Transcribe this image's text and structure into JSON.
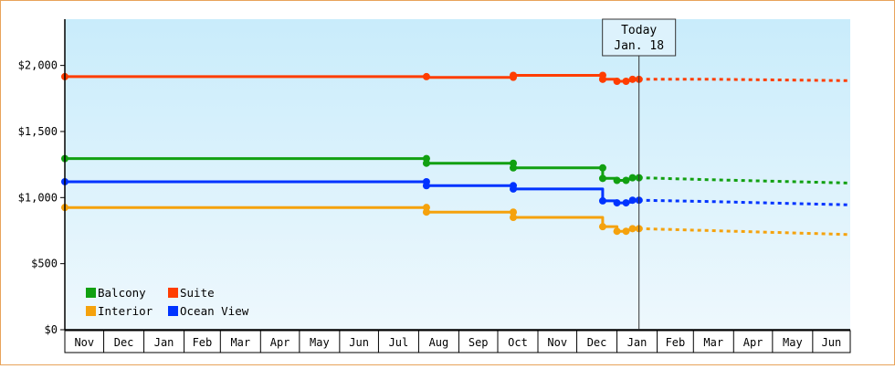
{
  "chart_data": {
    "type": "line",
    "x_axis": {
      "type": "time",
      "month_labels": [
        "Nov",
        "Dec",
        "Jan",
        "Feb",
        "Mar",
        "Apr",
        "May",
        "Jun",
        "Jul",
        "Aug",
        "Sep",
        "Oct",
        "Nov",
        "Dec",
        "Jan",
        "Feb",
        "Mar",
        "Apr",
        "May",
        "Jun"
      ],
      "range": [
        "2016-11-01",
        "2018-06-30"
      ]
    },
    "y_axis": {
      "min": 0,
      "max": 2350,
      "ticks": [
        0,
        500,
        1000,
        1500,
        2000
      ],
      "tick_labels": [
        "$0",
        "$500",
        "$1,000",
        "$1,500",
        "$2,000"
      ],
      "tick_format": "currency"
    },
    "today": {
      "line1": "Today",
      "line2": "Jan. 18",
      "date": "2018-01-18"
    },
    "legend": {
      "placement": "bottom-left",
      "items": [
        "Balcony",
        "Suite",
        "Interior",
        "Ocean View"
      ]
    },
    "series": [
      {
        "name": "Suite",
        "color": "#ff3d00",
        "points": [
          [
            "2016-11-01",
            1915
          ],
          [
            "2017-08-07",
            1915
          ],
          [
            "2017-08-07",
            1910
          ],
          [
            "2017-10-13",
            1910
          ],
          [
            "2017-10-13",
            1925
          ],
          [
            "2017-12-21",
            1925
          ],
          [
            "2017-12-21",
            1895
          ],
          [
            "2018-01-01",
            1895
          ],
          [
            "2018-01-01",
            1880
          ],
          [
            "2018-01-08",
            1880
          ],
          [
            "2018-01-08",
            1885
          ],
          [
            "2018-01-13",
            1885
          ],
          [
            "2018-01-13",
            1895
          ],
          [
            "2018-01-18",
            1895
          ]
        ],
        "forecast": [
          [
            "2018-01-18",
            1895
          ],
          [
            "2018-03-15",
            1895
          ],
          [
            "2018-06-30",
            1885
          ]
        ]
      },
      {
        "name": "Balcony",
        "color": "#11a011",
        "points": [
          [
            "2016-11-01",
            1295
          ],
          [
            "2017-08-07",
            1295
          ],
          [
            "2017-08-07",
            1260
          ],
          [
            "2017-10-13",
            1260
          ],
          [
            "2017-10-13",
            1225
          ],
          [
            "2017-12-21",
            1225
          ],
          [
            "2017-12-21",
            1145
          ],
          [
            "2018-01-01",
            1145
          ],
          [
            "2018-01-01",
            1130
          ],
          [
            "2018-01-08",
            1130
          ],
          [
            "2018-01-08",
            1140
          ],
          [
            "2018-01-13",
            1140
          ],
          [
            "2018-01-13",
            1150
          ],
          [
            "2018-01-18",
            1150
          ]
        ],
        "forecast": [
          [
            "2018-01-18",
            1150
          ],
          [
            "2018-03-15",
            1135
          ],
          [
            "2018-06-30",
            1110
          ]
        ]
      },
      {
        "name": "Ocean View",
        "color": "#0033ff",
        "points": [
          [
            "2016-11-01",
            1120
          ],
          [
            "2017-08-07",
            1120
          ],
          [
            "2017-08-07",
            1090
          ],
          [
            "2017-10-13",
            1090
          ],
          [
            "2017-10-13",
            1065
          ],
          [
            "2017-12-21",
            1065
          ],
          [
            "2017-12-21",
            975
          ],
          [
            "2018-01-01",
            975
          ],
          [
            "2018-01-01",
            960
          ],
          [
            "2018-01-08",
            960
          ],
          [
            "2018-01-08",
            965
          ],
          [
            "2018-01-13",
            965
          ],
          [
            "2018-01-13",
            980
          ],
          [
            "2018-01-18",
            980
          ]
        ],
        "forecast": [
          [
            "2018-01-18",
            980
          ],
          [
            "2018-03-15",
            970
          ],
          [
            "2018-06-30",
            945
          ]
        ]
      },
      {
        "name": "Interior",
        "color": "#f5a20d",
        "points": [
          [
            "2016-11-01",
            925
          ],
          [
            "2017-08-07",
            925
          ],
          [
            "2017-08-07",
            890
          ],
          [
            "2017-10-13",
            890
          ],
          [
            "2017-10-13",
            850
          ],
          [
            "2017-12-21",
            850
          ],
          [
            "2017-12-21",
            780
          ],
          [
            "2018-01-01",
            780
          ],
          [
            "2018-01-01",
            745
          ],
          [
            "2018-01-08",
            745
          ],
          [
            "2018-01-08",
            755
          ],
          [
            "2018-01-13",
            755
          ],
          [
            "2018-01-13",
            765
          ],
          [
            "2018-01-18",
            765
          ]
        ],
        "forecast": [
          [
            "2018-01-18",
            765
          ],
          [
            "2018-03-15",
            750
          ],
          [
            "2018-06-30",
            720
          ]
        ]
      }
    ],
    "markers": [
      {
        "series": "Suite",
        "x": "2016-11-01",
        "y": 1915
      },
      {
        "series": "Suite",
        "x": "2017-08-07",
        "y": 1915
      },
      {
        "series": "Suite",
        "x": "2017-10-13",
        "y": 1910
      },
      {
        "series": "Suite",
        "x": "2017-10-13",
        "y": 1925
      },
      {
        "series": "Suite",
        "x": "2017-12-21",
        "y": 1925
      },
      {
        "series": "Suite",
        "x": "2017-12-21",
        "y": 1895
      },
      {
        "series": "Suite",
        "x": "2018-01-01",
        "y": 1880
      },
      {
        "series": "Suite",
        "x": "2018-01-08",
        "y": 1880
      },
      {
        "series": "Suite",
        "x": "2018-01-13",
        "y": 1895
      },
      {
        "series": "Suite",
        "x": "2018-01-18",
        "y": 1895
      },
      {
        "series": "Balcony",
        "x": "2016-11-01",
        "y": 1295
      },
      {
        "series": "Balcony",
        "x": "2017-08-07",
        "y": 1295
      },
      {
        "series": "Balcony",
        "x": "2017-08-07",
        "y": 1260
      },
      {
        "series": "Balcony",
        "x": "2017-10-13",
        "y": 1260
      },
      {
        "series": "Balcony",
        "x": "2017-10-13",
        "y": 1225
      },
      {
        "series": "Balcony",
        "x": "2017-12-21",
        "y": 1225
      },
      {
        "series": "Balcony",
        "x": "2017-12-21",
        "y": 1145
      },
      {
        "series": "Balcony",
        "x": "2018-01-01",
        "y": 1130
      },
      {
        "series": "Balcony",
        "x": "2018-01-08",
        "y": 1130
      },
      {
        "series": "Balcony",
        "x": "2018-01-13",
        "y": 1150
      },
      {
        "series": "Balcony",
        "x": "2018-01-18",
        "y": 1150
      },
      {
        "series": "Ocean View",
        "x": "2016-11-01",
        "y": 1120
      },
      {
        "series": "Ocean View",
        "x": "2017-08-07",
        "y": 1120
      },
      {
        "series": "Ocean View",
        "x": "2017-08-07",
        "y": 1090
      },
      {
        "series": "Ocean View",
        "x": "2017-10-13",
        "y": 1090
      },
      {
        "series": "Ocean View",
        "x": "2017-10-13",
        "y": 1065
      },
      {
        "series": "Ocean View",
        "x": "2017-12-21",
        "y": 975
      },
      {
        "series": "Ocean View",
        "x": "2018-01-01",
        "y": 960
      },
      {
        "series": "Ocean View",
        "x": "2018-01-08",
        "y": 960
      },
      {
        "series": "Ocean View",
        "x": "2018-01-13",
        "y": 980
      },
      {
        "series": "Ocean View",
        "x": "2018-01-18",
        "y": 980
      },
      {
        "series": "Interior",
        "x": "2016-11-01",
        "y": 925
      },
      {
        "series": "Interior",
        "x": "2017-08-07",
        "y": 925
      },
      {
        "series": "Interior",
        "x": "2017-08-07",
        "y": 890
      },
      {
        "series": "Interior",
        "x": "2017-10-13",
        "y": 890
      },
      {
        "series": "Interior",
        "x": "2017-10-13",
        "y": 850
      },
      {
        "series": "Interior",
        "x": "2017-12-21",
        "y": 780
      },
      {
        "series": "Interior",
        "x": "2018-01-01",
        "y": 745
      },
      {
        "series": "Interior",
        "x": "2018-01-08",
        "y": 745
      },
      {
        "series": "Interior",
        "x": "2018-01-13",
        "y": 765
      },
      {
        "series": "Interior",
        "x": "2018-01-18",
        "y": 765
      }
    ],
    "colors": {
      "plot_bg_top": "#c9ecfb",
      "plot_bg_bottom": "#eef8fd",
      "frame_border": "#e8a35a",
      "axis": "#000000"
    },
    "grid": "vertical-month-lines"
  }
}
